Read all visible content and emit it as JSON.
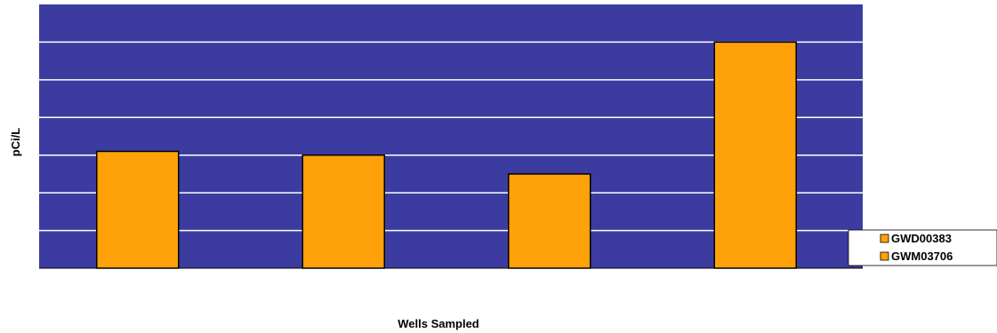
{
  "chart_data": {
    "type": "bar",
    "title": "",
    "xlabel": "Wells Sampled",
    "ylabel": "pCi/L",
    "categories": [
      "",
      "",
      "",
      ""
    ],
    "series": [
      {
        "name": "GWD00383",
        "values": [
          3.1,
          3.0,
          2.5,
          6.0
        ],
        "color": "#FFA20A"
      }
    ],
    "legend_series": [
      {
        "name": "GWD00383",
        "color": "#FFA20A"
      },
      {
        "name": "GWM03706",
        "color": "#FFA20A"
      }
    ],
    "ylim": [
      0,
      7
    ],
    "grid": true,
    "plot_background": "#3C3CA0",
    "gridline_color": "#FFFFFF",
    "legend_position": "right"
  }
}
